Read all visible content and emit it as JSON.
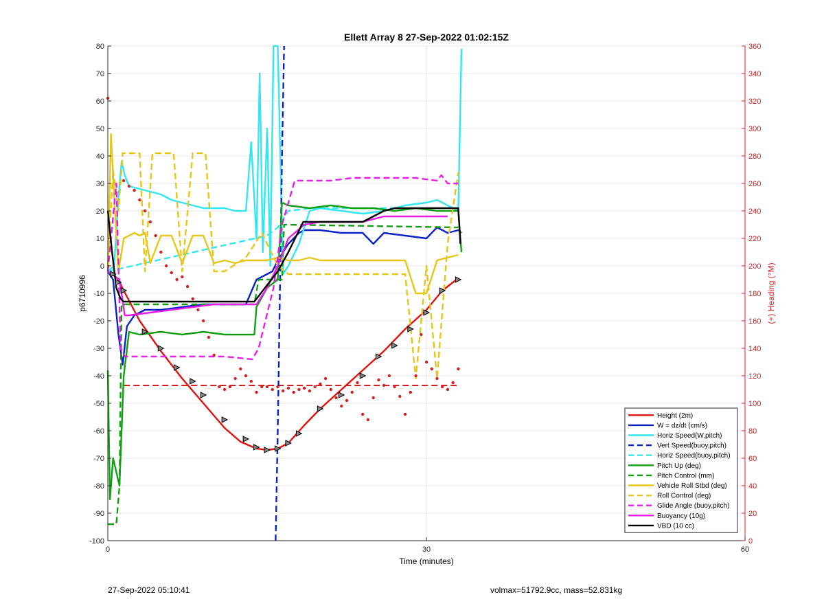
{
  "chart_data": {
    "type": "line",
    "title": "Ellett Array 8 27-Sep-2022 01:02:15Z",
    "xlabel": "Time (minutes)",
    "ylabel": "p6710996",
    "y2label": "(+) Heading (°M)",
    "xlim": [
      0,
      60
    ],
    "ylim": [
      -100,
      80
    ],
    "y2lim": [
      0,
      360
    ],
    "xticks": [
      0,
      30,
      60
    ],
    "yticks": [
      -100,
      -90,
      -80,
      -70,
      -60,
      -50,
      -40,
      -30,
      -20,
      -10,
      0,
      10,
      20,
      30,
      40,
      50,
      60,
      70,
      80
    ],
    "y2ticks": [
      0,
      20,
      40,
      60,
      80,
      100,
      120,
      140,
      160,
      180,
      200,
      220,
      240,
      260,
      280,
      300,
      320,
      340,
      360
    ],
    "grid": true,
    "legend_position": "bottom-right",
    "colors": {
      "height": "#e0120f",
      "w": "#0a23c8",
      "horiz_speed": "#33e6f0",
      "pitch": "#12a012",
      "roll": "#e6c619",
      "glide": "#e61ee6",
      "vbd": "#000000",
      "heading_axis": "#d42020"
    },
    "series": [
      {
        "name": "Height (2m)",
        "color": "#e0120f",
        "dash": "solid",
        "x": [
          0,
          0.5,
          1,
          1.5,
          3,
          5,
          7,
          9,
          11,
          12.5,
          14,
          15,
          16,
          17,
          18.5,
          20,
          22,
          24,
          26,
          28,
          30,
          31.5,
          33
        ],
        "values": [
          -2,
          -3,
          -5,
          -9,
          -20,
          -31,
          -41,
          -50,
          -59,
          -64,
          -66.5,
          -67,
          -66.5,
          -64.5,
          -58,
          -52,
          -45,
          -38,
          -31,
          -23,
          -16,
          -9,
          -4.5
        ]
      },
      {
        "name": "W = dz/dt (cm/s)",
        "color": "#0a23c8",
        "dash": "solid",
        "x": [
          0,
          0.5,
          1,
          1.4,
          1.8,
          2.5,
          3.5,
          5,
          7,
          9,
          11,
          13,
          14,
          15,
          15.5,
          16,
          17,
          18,
          18.5,
          20,
          22,
          24,
          25,
          26,
          28,
          30,
          31,
          32,
          33,
          33.3
        ],
        "values": [
          -2,
          -5,
          -25,
          -36,
          -22,
          -18,
          -16,
          -16,
          -15,
          -14,
          -14,
          -14,
          -5,
          -3,
          -2,
          2,
          8,
          12,
          13,
          13,
          12,
          12,
          8,
          12,
          11,
          10,
          14,
          12,
          13,
          12
        ]
      },
      {
        "name": "Horiz Speed(W,pitch)",
        "color": "#33e6f0",
        "dash": "solid",
        "x": [
          0,
          0.6,
          1,
          1.3,
          1.6,
          2,
          3,
          4,
          5,
          6,
          7,
          8,
          9,
          10,
          11,
          12,
          13,
          13.5,
          14,
          14.3,
          14.6,
          15,
          15.3,
          15.6,
          16,
          16.5,
          17,
          18,
          19,
          20,
          22,
          24,
          26,
          28,
          30,
          31,
          32,
          33,
          33.3
        ],
        "values": [
          -2,
          0,
          25,
          38,
          33,
          29,
          28,
          27,
          26,
          24,
          23,
          22,
          21,
          21,
          21,
          20,
          20,
          45,
          10,
          70,
          5,
          50,
          0,
          80,
          80,
          -3,
          0,
          8,
          20,
          21,
          20,
          19,
          20,
          22,
          23,
          24,
          22,
          20,
          79
        ]
      },
      {
        "name": "Vert Speed(buoy,pitch)",
        "color": "#0a23c8",
        "dash": "dashed",
        "x": [
          15.8,
          16.0,
          16.2,
          16.4,
          16.6
        ],
        "values": [
          -100,
          -60,
          -10,
          40,
          80
        ]
      },
      {
        "name": "Horiz Speed(buoy,pitch)",
        "color": "#33e6f0",
        "dash": "dashed",
        "x": [
          0,
          15,
          16,
          17,
          19,
          33
        ],
        "values": [
          -2,
          11,
          14,
          20,
          21,
          21
        ]
      },
      {
        "name": "Pitch Up (deg)",
        "color": "#12a012",
        "dash": "solid",
        "x": [
          0,
          0.2,
          0.5,
          0.8,
          1.1,
          1.5,
          2,
          3,
          5,
          7,
          9,
          11,
          13,
          13.8,
          14,
          15,
          16,
          16.4,
          17,
          19,
          21,
          23,
          25,
          27,
          29,
          31,
          33,
          33.3
        ],
        "values": [
          -38,
          -85,
          -70,
          -75,
          -80,
          -40,
          -24,
          -25,
          -24,
          -25,
          -24,
          -25,
          -25,
          -25,
          -15,
          -8,
          -5,
          23,
          22,
          21,
          22,
          21,
          21,
          20,
          21,
          20,
          20,
          5
        ]
      },
      {
        "name": "Pitch Control (mm)",
        "color": "#12a012",
        "dash": "dashed",
        "x": [
          0,
          0.8,
          1.1,
          1.3,
          2,
          13.8,
          14.2,
          16.4,
          16.6,
          33
        ],
        "values": [
          -94,
          -94,
          -80,
          -14,
          -14,
          -14,
          -5,
          -5,
          15,
          14
        ]
      },
      {
        "name": "Vehicle Roll Stbd (deg)",
        "color": "#e6c619",
        "dash": "solid",
        "x": [
          0,
          0.3,
          0.6,
          1,
          1.5,
          2,
          2.5,
          3,
          3.5,
          4,
          5,
          6,
          7,
          8,
          9,
          10,
          11,
          12,
          13,
          14,
          15,
          16,
          17,
          18,
          19,
          20,
          22,
          24,
          26,
          28,
          29,
          30,
          31,
          32,
          33
        ],
        "values": [
          -2,
          48,
          25,
          -2,
          10,
          11,
          12,
          11,
          12,
          1,
          11,
          11,
          1,
          11,
          11,
          1,
          2,
          1,
          2,
          2,
          2,
          3,
          2,
          2,
          3,
          2,
          2,
          2,
          2,
          2,
          -10,
          -10,
          2,
          3,
          4
        ]
      },
      {
        "name": "Roll Control (deg)",
        "color": "#e6c619",
        "dash": "dashed",
        "x": [
          0,
          0.5,
          1,
          1.4,
          2,
          3,
          3.5,
          4.2,
          5,
          6.2,
          7,
          8,
          9.2,
          10,
          11,
          13,
          14.5,
          16,
          17,
          19,
          21,
          23,
          25,
          27,
          28,
          29,
          30,
          31,
          32,
          33
        ],
        "values": [
          0,
          35,
          20,
          41,
          41,
          41,
          -2,
          41,
          41,
          41,
          -2,
          41,
          41,
          -2,
          -2,
          3,
          12,
          0,
          -3,
          -3,
          -3,
          -3,
          -3,
          -3,
          -3,
          -41,
          0,
          -41,
          8,
          34
        ]
      },
      {
        "name": "Glide Angle (buoy,pitch)",
        "color": "#e61ee6",
        "dash": "dashed",
        "x": [
          0,
          0.8,
          1.2,
          1.6,
          3,
          5,
          8,
          11,
          13.6,
          14.2,
          15.6,
          16.4,
          17.6,
          19,
          21,
          23,
          25,
          27,
          29,
          31,
          31.4,
          32,
          33
        ],
        "values": [
          -2,
          30,
          -30,
          -33,
          -33,
          -33,
          -33,
          -33,
          -34,
          -30,
          -8,
          15,
          31,
          31,
          31,
          32,
          32,
          32,
          32,
          31,
          33,
          30,
          30
        ]
      },
      {
        "name": "Buoyancy (10g)",
        "color": "#e61ee6",
        "dash": "solid",
        "x": [
          0,
          1.1,
          1.6,
          2,
          4,
          6,
          8,
          10,
          12,
          14,
          15,
          16,
          17,
          18.5,
          20,
          22,
          24,
          26,
          28,
          30,
          32
        ],
        "values": [
          -2,
          -5,
          -18,
          -18,
          -17,
          -16,
          -15,
          -14,
          -14,
          -14,
          -8,
          0,
          10,
          15,
          16,
          16,
          16,
          18,
          18,
          18,
          18
        ]
      },
      {
        "name": "VBD (10 cc)",
        "color": "#000000",
        "dash": "solid",
        "x": [
          0,
          0.4,
          0.8,
          1.2,
          1.5,
          2,
          4,
          8,
          12,
          13.8,
          15,
          16,
          17,
          18.4,
          20,
          24,
          25,
          26,
          27,
          30,
          33,
          33.2
        ],
        "values": [
          20,
          5,
          -8,
          -12,
          -13,
          -13,
          -13,
          -13,
          -13,
          -13,
          -7,
          -2,
          5,
          16,
          16,
          16,
          18,
          20,
          21,
          21,
          21,
          8
        ]
      }
    ],
    "heading_dots": {
      "axis": "right",
      "color": "#d42020",
      "x": [
        0,
        1.5,
        2,
        2.5,
        3,
        3.5,
        4,
        4.5,
        5,
        5.5,
        6,
        6.5,
        7,
        7.5,
        8,
        8.5,
        9,
        9.5,
        10,
        10.5,
        11,
        11.5,
        12,
        12.5,
        13,
        13.5,
        14,
        14.5,
        15,
        15.5,
        16,
        16.5,
        17,
        17.5,
        18,
        18.5,
        19,
        19.5,
        20,
        20.5,
        21,
        21.5,
        22,
        22.5,
        23,
        23.5,
        24,
        24.5,
        25,
        25.5,
        26,
        26.5,
        27,
        27.5,
        28,
        28.5,
        29,
        29.5,
        30,
        30.5,
        31,
        31.5,
        32,
        32.5,
        33
      ],
      "values": [
        322,
        262,
        258,
        255,
        248,
        240,
        232,
        222,
        210,
        200,
        195,
        190,
        192,
        185,
        176,
        168,
        160,
        148,
        135,
        112,
        110,
        112,
        118,
        125,
        120,
        116,
        108,
        112,
        112,
        110,
        112,
        109,
        111,
        108,
        110,
        111,
        109,
        112,
        114,
        118,
        110,
        104,
        98,
        102,
        108,
        115,
        92,
        88,
        104,
        117,
        113,
        120,
        112,
        105,
        92,
        108,
        120,
        150,
        130,
        125,
        118,
        112,
        110,
        115,
        125
      ]
    },
    "heading_target": {
      "axis": "right",
      "color": "#d42020",
      "dash": "dashed",
      "x": [
        1.5,
        33
      ],
      "values": [
        113,
        113
      ]
    },
    "glider_markers": {
      "color": "#000000",
      "x": [
        0.5,
        1,
        1.5,
        3.5,
        5,
        6.5,
        8,
        9,
        11,
        13,
        14,
        15,
        16,
        17,
        18,
        20,
        22,
        24,
        25.5,
        27,
        28.5,
        30,
        31.5,
        33
      ],
      "values": [
        -3,
        -6,
        -9,
        -24,
        -30,
        -37,
        -42,
        -47,
        -56,
        -63,
        -66,
        -67,
        -66.5,
        -64.5,
        -61,
        -52,
        -47,
        -40,
        -33,
        -29,
        -23,
        -17,
        -9,
        -5
      ]
    }
  },
  "footer": {
    "left": "27-Sep-2022 05:10:41",
    "right": "volmax=51792.9cc, mass=52.831kg"
  }
}
